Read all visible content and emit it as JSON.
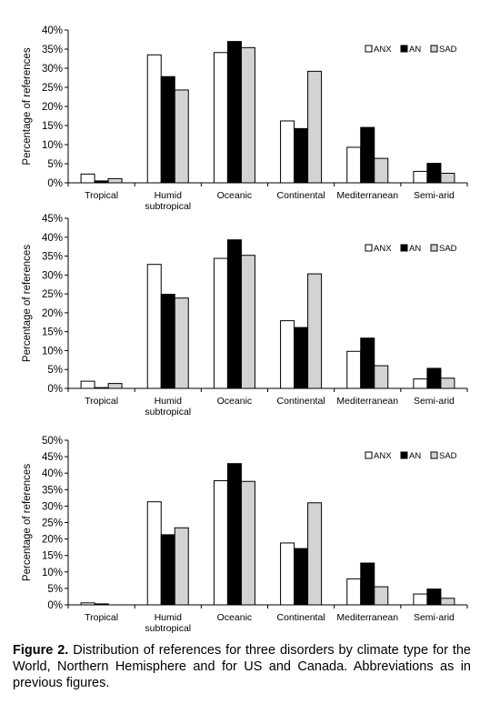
{
  "chart_data": [
    {
      "type": "bar",
      "categories": [
        "Tropical",
        "Humid\nsubtropical",
        "Oceanic",
        "Continental",
        "Mediterranean",
        "Semi-arid"
      ],
      "series": [
        {
          "name": "ANX",
          "values": [
            2.3,
            33.5,
            34.1,
            16.2,
            9.3,
            3.0
          ]
        },
        {
          "name": "AN",
          "values": [
            0.5,
            27.8,
            37.0,
            14.2,
            14.5,
            5.1
          ]
        },
        {
          "name": "SAD",
          "values": [
            1.1,
            24.3,
            35.4,
            29.2,
            6.4,
            2.5
          ]
        }
      ],
      "ylabel": "Percentage of references",
      "ylim": [
        0,
        40
      ],
      "yticks": [
        "0%",
        "5%",
        "10%",
        "15%",
        "20%",
        "25%",
        "30%",
        "35%",
        "40%"
      ],
      "legend": "top-right",
      "colors": {
        "ANX": "#ffffff",
        "AN": "#000000",
        "SAD": "#d3d3d3"
      }
    },
    {
      "type": "bar",
      "categories": [
        "Tropical",
        "Humid\nsubtropical",
        "Oceanic",
        "Continental",
        "Mediterranean",
        "Semi-arid"
      ],
      "series": [
        {
          "name": "ANX",
          "values": [
            1.9,
            32.8,
            34.4,
            17.9,
            9.8,
            2.5
          ]
        },
        {
          "name": "AN",
          "values": [
            0.2,
            24.9,
            39.3,
            16.1,
            13.3,
            5.3
          ]
        },
        {
          "name": "SAD",
          "values": [
            1.3,
            23.9,
            35.2,
            30.3,
            6.0,
            2.7
          ]
        }
      ],
      "ylabel": "Percentage of references",
      "ylim": [
        0,
        45
      ],
      "yticks": [
        "0%",
        "5%",
        "10%",
        "15%",
        "20%",
        "25%",
        "30%",
        "35%",
        "40%",
        "45%"
      ],
      "legend": "top-right",
      "colors": {
        "ANX": "#ffffff",
        "AN": "#000000",
        "SAD": "#d3d3d3"
      }
    },
    {
      "type": "bar",
      "categories": [
        "Tropical",
        "Humid\nsubtropical",
        "Oceanic",
        "Continental",
        "Mediterranean",
        "Semi-arid"
      ],
      "series": [
        {
          "name": "ANX",
          "values": [
            0.6,
            31.3,
            37.7,
            18.8,
            7.9,
            3.3
          ]
        },
        {
          "name": "AN",
          "values": [
            0.3,
            21.3,
            42.9,
            17.1,
            12.7,
            4.8
          ]
        },
        {
          "name": "SAD",
          "values": [
            0.0,
            23.4,
            37.5,
            31.0,
            5.5,
            2.0
          ]
        }
      ],
      "ylabel": "Percentage of references",
      "ylim": [
        0,
        50
      ],
      "yticks": [
        "0%",
        "5%",
        "10%",
        "15%",
        "20%",
        "25%",
        "30%",
        "35%",
        "40%",
        "45%",
        "50%"
      ],
      "legend": "top-right",
      "colors": {
        "ANX": "#ffffff",
        "AN": "#000000",
        "SAD": "#d3d3d3"
      }
    }
  ],
  "caption": {
    "label": "Figure 2.",
    "text": " Distribution of references for three disorders by climate type for the World, Northern Hemisphere and for US and Canada. Abbreviations as in previous figures."
  }
}
